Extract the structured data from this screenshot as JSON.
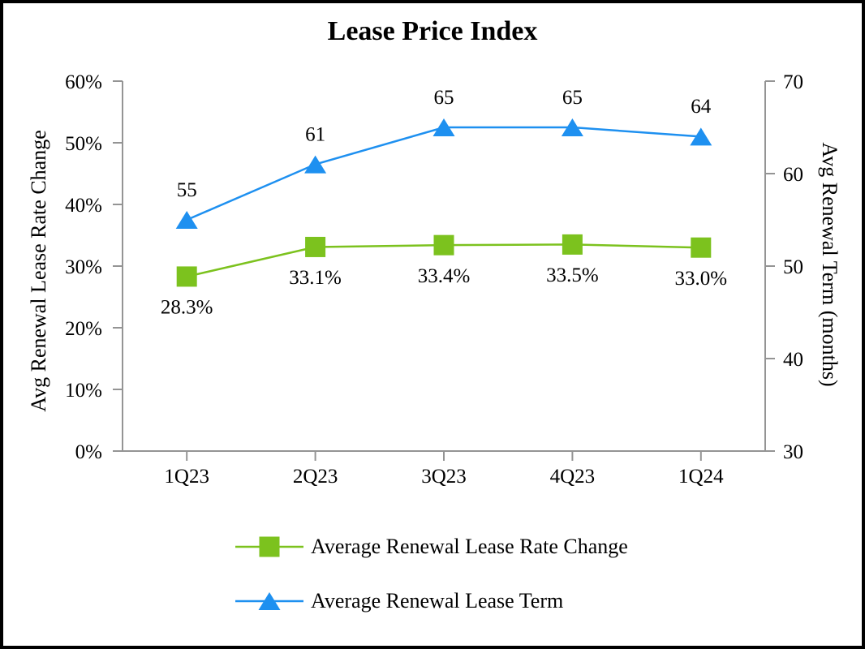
{
  "chart_data": {
    "type": "line",
    "title": "Lease Price Index",
    "categories": [
      "1Q23",
      "2Q23",
      "3Q23",
      "4Q23",
      "1Q24"
    ],
    "series": [
      {
        "name": "Average Renewal Lease Rate Change",
        "axis": "left",
        "marker": "square",
        "color": "#7CC21E",
        "label_position": "below",
        "values": [
          28.3,
          33.1,
          33.4,
          33.5,
          33.0
        ],
        "data_labels": [
          "28.3%",
          "33.1%",
          "33.4%",
          "33.5%",
          "33.0%"
        ]
      },
      {
        "name": "Average Renewal Lease Term",
        "axis": "right",
        "marker": "triangle",
        "color": "#1E90F0",
        "label_position": "above",
        "values": [
          55,
          61,
          65,
          65,
          64
        ],
        "data_labels": [
          "55",
          "61",
          "65",
          "65",
          "64"
        ]
      }
    ],
    "left_axis": {
      "label": "Avg Renewal Lease Rate Change",
      "min": 0,
      "max": 60,
      "step": 10,
      "tick_labels": [
        "0%",
        "10%",
        "20%",
        "30%",
        "40%",
        "50%",
        "60%"
      ]
    },
    "right_axis": {
      "label": "Avg Renewal Term (months)",
      "min": 30,
      "max": 70,
      "step": 10,
      "tick_labels": [
        "30",
        "40",
        "50",
        "60",
        "70"
      ]
    },
    "x_axis": {
      "tick_labels": [
        "1Q23",
        "2Q23",
        "3Q23",
        "4Q23",
        "1Q24"
      ]
    },
    "legend": {
      "position": "bottom",
      "entries": [
        "Average Renewal Lease Rate Change",
        "Average Renewal Lease Term"
      ]
    },
    "grid": false,
    "axis_color": "#949494"
  }
}
